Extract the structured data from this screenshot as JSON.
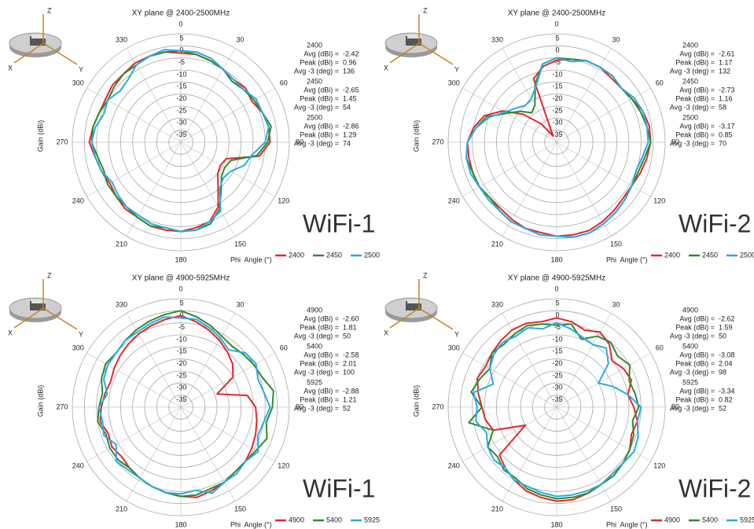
{
  "axis_icon": {
    "z": "Z",
    "x": "X",
    "y": "Y"
  },
  "chart_data": [
    {
      "type": "polar",
      "title": "XY plane @ 2400-2500MHz",
      "label": "WiFi-1",
      "r_axis_label": "Gain (dBi)",
      "angle_axis_label": "Phi  Angle (°)",
      "rlim": [
        -40,
        5
      ],
      "rticks": [
        5,
        0,
        -5,
        -10,
        -15,
        -20,
        -25,
        -30,
        -35
      ],
      "angle_ticks": [
        0,
        30,
        60,
        90,
        120,
        150,
        180,
        210,
        240,
        270,
        300,
        330
      ],
      "x": [
        0,
        10,
        20,
        30,
        40,
        50,
        60,
        70,
        80,
        90,
        100,
        110,
        120,
        130,
        140,
        150,
        160,
        170,
        180,
        190,
        200,
        210,
        220,
        230,
        240,
        250,
        260,
        270,
        280,
        290,
        300,
        310,
        320,
        330,
        340,
        350
      ],
      "series": [
        {
          "name": "2400",
          "color": "#e8262a",
          "values": [
            -3,
            -3,
            -4,
            -5,
            -6,
            -5,
            -6,
            -4,
            -3,
            -3,
            -7,
            -20,
            -21,
            -20,
            -16,
            -9,
            -5,
            -4,
            -3,
            -3,
            -3,
            -4,
            -4,
            -5,
            -6,
            -5,
            -4,
            -2,
            -3,
            -4,
            -4,
            -3,
            -3,
            -2,
            -2,
            -2
          ]
        },
        {
          "name": "2450",
          "color": "#2e8b2e",
          "values": [
            -2,
            -3,
            -4,
            -5,
            -7,
            -6,
            -5,
            -4,
            -2,
            -4,
            -8,
            -18,
            -19,
            -18,
            -14,
            -8,
            -4,
            -3,
            -3,
            -4,
            -3,
            -4,
            -5,
            -5,
            -5,
            -6,
            -5,
            -3,
            -3,
            -4,
            -5,
            -4,
            -3,
            -3,
            -2,
            -2
          ]
        },
        {
          "name": "2500",
          "color": "#29abe2",
          "values": [
            -2,
            -2,
            -3,
            -5,
            -6,
            -6,
            -4,
            -4,
            -3,
            -5,
            -10,
            -12,
            -16,
            -17,
            -15,
            -7,
            -5,
            -3,
            -3,
            -4,
            -4,
            -5,
            -5,
            -6,
            -7,
            -5,
            -4,
            -3,
            -4,
            -6,
            -5,
            -7,
            -6,
            -3,
            -2,
            -1
          ]
        }
      ],
      "stat_labels": [
        "Avg (dBi) =",
        "Peak (dBi) =",
        "Avg -3 (deg) ="
      ],
      "stats": [
        [
          "-2.42",
          "0.96",
          "136"
        ],
        [
          "-2.65",
          "1.45",
          "54"
        ],
        [
          "-2.86",
          "1.29",
          "74"
        ]
      ]
    },
    {
      "type": "polar",
      "title": "XY plane @ 2400-2500MHz",
      "label": "WiFi-2",
      "r_axis_label": "Gain (dBi)",
      "angle_axis_label": "Phi  Angle (°)",
      "rlim": [
        -40,
        5
      ],
      "rticks": [
        5,
        0,
        -5,
        -10,
        -15,
        -20,
        -25,
        -30,
        -35
      ],
      "angle_ticks": [
        0,
        30,
        60,
        90,
        120,
        150,
        180,
        210,
        240,
        270,
        300,
        330
      ],
      "x": [
        0,
        10,
        20,
        30,
        40,
        50,
        60,
        70,
        80,
        90,
        100,
        110,
        120,
        130,
        140,
        150,
        160,
        170,
        180,
        190,
        200,
        210,
        220,
        230,
        240,
        250,
        260,
        270,
        280,
        290,
        300,
        310,
        320,
        330,
        340,
        350
      ],
      "series": [
        {
          "name": "2400",
          "color": "#e8262a",
          "values": [
            -6,
            -5,
            -4,
            -4,
            -5,
            -5,
            -4,
            -2,
            -1,
            -1,
            -2,
            -3,
            -4,
            -4,
            -3,
            -2,
            -1,
            -1,
            -1,
            -2,
            -2,
            -3,
            -4,
            -4,
            -3,
            -3,
            -3,
            -3,
            -5,
            -8,
            -14,
            -22,
            -30,
            -37,
            -12,
            -8
          ]
        },
        {
          "name": "2450",
          "color": "#2e8b2e",
          "values": [
            -5,
            -5,
            -4,
            -4,
            -4,
            -5,
            -4,
            -3,
            -2,
            -1,
            -3,
            -4,
            -4,
            -3,
            -2,
            -1,
            0,
            0,
            -1,
            -1,
            -2,
            -2,
            -3,
            -4,
            -3,
            -3,
            -2,
            -3,
            -6,
            -9,
            -16,
            -20,
            -24,
            -22,
            -14,
            -7
          ]
        },
        {
          "name": "2500",
          "color": "#29abe2",
          "values": [
            -5,
            -6,
            -4,
            -4,
            -4,
            -5,
            -3,
            -2,
            -2,
            -2,
            -4,
            -5,
            -4,
            -3,
            -2,
            -1,
            0,
            0,
            -1,
            -1,
            -2,
            -2,
            -3,
            -3,
            -3,
            -2,
            -2,
            -3,
            -6,
            -10,
            -15,
            -18,
            -20,
            -19,
            -15,
            -7
          ]
        }
      ],
      "stat_labels": [
        "Avg (dBi) =",
        "Peak (dBi) =",
        "Avg -3 (deg) ="
      ],
      "stats": [
        [
          "-2.61",
          "1.17",
          "132"
        ],
        [
          "-2.73",
          "1.16",
          "58"
        ],
        [
          "-3.17",
          "0.85",
          "70"
        ]
      ]
    },
    {
      "type": "polar",
      "title": "XY plane @ 4900-5925MHz",
      "label": "WiFi-1",
      "r_axis_label": "Gain (dBi)",
      "angle_axis_label": "Phi  Angle (°)",
      "rlim": [
        -40,
        5
      ],
      "rticks": [
        5,
        0,
        -5,
        -10,
        -15,
        -20,
        -25,
        -30,
        -35
      ],
      "angle_ticks": [
        0,
        30,
        60,
        90,
        120,
        150,
        180,
        210,
        240,
        270,
        300,
        330
      ],
      "x": [
        0,
        10,
        20,
        30,
        40,
        50,
        60,
        70,
        80,
        90,
        100,
        110,
        120,
        130,
        140,
        150,
        160,
        170,
        180,
        190,
        200,
        210,
        220,
        230,
        240,
        250,
        260,
        270,
        280,
        290,
        300,
        310,
        320,
        330,
        340,
        350
      ],
      "series": [
        {
          "name": "4900",
          "color": "#e8262a",
          "values": [
            -2,
            -4,
            -6,
            -8,
            -10,
            -12,
            -15,
            -24,
            -12,
            -9,
            -8,
            -7,
            -6,
            -5,
            -5,
            -4,
            -3,
            -2,
            -3,
            -4,
            -5,
            -6,
            -7,
            -8,
            -7,
            -8,
            -6,
            -7,
            -8,
            -9,
            -8,
            -7,
            -6,
            -5,
            -4,
            -3
          ]
        },
        {
          "name": "5400",
          "color": "#2e8b2e",
          "values": [
            0,
            -2,
            -4,
            -6,
            -7,
            -6,
            -5,
            -4,
            -1,
            -2,
            -4,
            -2,
            -4,
            -5,
            -5,
            -4,
            -4,
            -3,
            -3,
            -4,
            -5,
            -6,
            -7,
            -6,
            -6,
            -7,
            -5,
            -6,
            -7,
            -5,
            -4,
            -5,
            -4,
            -3,
            -2,
            -1
          ]
        },
        {
          "name": "5925",
          "color": "#29abe2",
          "values": [
            -3,
            -3,
            -5,
            -7,
            -9,
            -5,
            -4,
            -6,
            -5,
            -3,
            -5,
            -6,
            -3,
            -5,
            -4,
            -4,
            -2,
            -5,
            -4,
            -4,
            -5,
            -6,
            -6,
            -5,
            -9,
            -6,
            -7,
            -6,
            -9,
            -6,
            -5,
            -5,
            -4,
            -4,
            -3,
            -2
          ]
        }
      ],
      "stat_labels": [
        "Avg (dBi) =",
        "Peak (dBi) =",
        "Avg -3 (deg) ="
      ],
      "stats": [
        [
          "-2.60",
          "1.81",
          "50"
        ],
        [
          "-2.58",
          "2.01",
          "100"
        ],
        [
          "-2.88",
          "1.21",
          "52"
        ]
      ]
    },
    {
      "type": "polar",
      "title": "XY plane @ 4900-5925MHz",
      "label": "WiFi-2",
      "r_axis_label": "Gain (dBi)",
      "angle_axis_label": "Phi  Angle (°)",
      "rlim": [
        -40,
        5
      ],
      "rticks": [
        5,
        0,
        -5,
        -10,
        -15,
        -20,
        -25,
        -30,
        -35
      ],
      "angle_ticks": [
        0,
        30,
        60,
        90,
        120,
        150,
        180,
        210,
        240,
        270,
        300,
        330
      ],
      "x": [
        0,
        10,
        20,
        30,
        40,
        50,
        60,
        70,
        80,
        90,
        100,
        110,
        120,
        130,
        140,
        150,
        160,
        170,
        180,
        190,
        200,
        210,
        220,
        230,
        240,
        250,
        260,
        270,
        280,
        290,
        300,
        310,
        320,
        330,
        340,
        350
      ],
      "series": [
        {
          "name": "4900",
          "color": "#e8262a",
          "values": [
            -3,
            -4,
            -6,
            -4,
            -6,
            -10,
            -8,
            -7,
            -10,
            -8,
            -6,
            -7,
            -5,
            -4,
            -4,
            -3,
            -2,
            -1,
            -1,
            -2,
            -3,
            -5,
            -7,
            -9,
            -25,
            -12,
            -10,
            -9,
            -7,
            -5,
            -6,
            -5,
            -4,
            -3,
            -3,
            -4
          ]
        },
        {
          "name": "5400",
          "color": "#2e8b2e",
          "values": [
            -6,
            -5,
            -10,
            -6,
            -5,
            -7,
            -5,
            -8,
            -7,
            -6,
            -8,
            -6,
            -5,
            -4,
            -3,
            -3,
            -2,
            -2,
            -2,
            -3,
            -4,
            -6,
            -6,
            -8,
            -7,
            -12,
            -3,
            -9,
            -4,
            -6,
            -8,
            -5,
            -6,
            -5,
            -4,
            -5
          ]
        },
        {
          "name": "5925",
          "color": "#29abe2",
          "values": [
            -5,
            -7,
            -9,
            -10,
            -8,
            -12,
            -20,
            -15,
            -10,
            -5,
            -6,
            -4,
            -3,
            -4,
            -4,
            -3,
            -3,
            -3,
            -3,
            -4,
            -5,
            -5,
            -7,
            -6,
            -7,
            -9,
            -6,
            -7,
            -5,
            -12,
            -8,
            -6,
            -5,
            -6,
            -5,
            -7
          ]
        }
      ],
      "stat_labels": [
        "Avg (dBi) =",
        "Peak (dBi) =",
        "Avg -3 (deg) ="
      ],
      "stats": [
        [
          "-2.62",
          "1.59",
          "50"
        ],
        [
          "-3.08",
          "2.04",
          "98"
        ],
        [
          "-3.34",
          "0.82",
          "52"
        ]
      ]
    }
  ]
}
